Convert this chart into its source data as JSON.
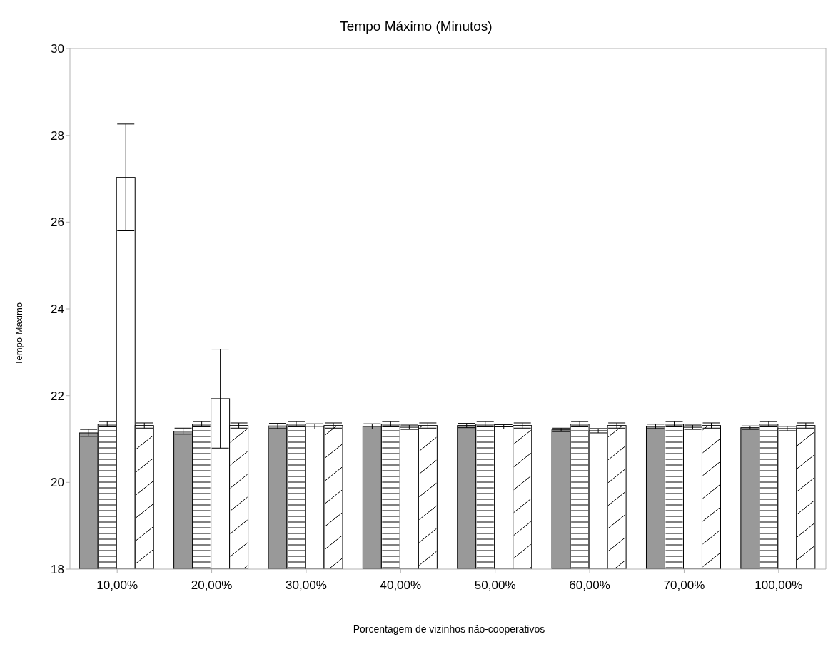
{
  "chart_data": {
    "type": "bar",
    "title": "Tempo Máximo (Minutos)",
    "xlabel": "Porcentagem de vizinhos não-cooperativos",
    "ylabel": "Tempo Máximo",
    "categories": [
      "10,00%",
      "20,00%",
      "30,00%",
      "40,00%",
      "50,00%",
      "60,00%",
      "70,00%",
      "100,00%"
    ],
    "series": [
      {
        "color": "#999999",
        "values": [
          21.14,
          21.18,
          21.3,
          21.29,
          21.31,
          21.21,
          21.29,
          21.26
        ],
        "errors": [
          0.08,
          0.07,
          0.06,
          0.06,
          0.05,
          0.04,
          0.05,
          0.04
        ]
      },
      {
        "color": "#ffffff",
        "values": [
          21.34,
          21.34,
          21.34,
          21.34,
          21.34,
          21.34,
          21.34,
          21.34
        ],
        "errors": [
          0.06,
          0.06,
          0.06,
          0.06,
          0.06,
          0.06,
          0.06,
          0.06
        ]
      },
      {
        "color": "#ffffff",
        "values": [
          27.03,
          21.93,
          21.29,
          21.27,
          21.28,
          21.19,
          21.27,
          21.24
        ],
        "errors": [
          1.23,
          1.14,
          0.06,
          0.05,
          0.05,
          0.05,
          0.05,
          0.05
        ]
      },
      {
        "color": "#ffffff",
        "values": [
          21.31,
          21.31,
          21.31,
          21.31,
          21.31,
          21.31,
          21.31,
          21.31
        ],
        "errors": [
          0.06,
          0.06,
          0.06,
          0.06,
          0.06,
          0.06,
          0.06,
          0.06
        ]
      }
    ],
    "ylim": [
      18,
      30
    ],
    "yticks": [
      18,
      20,
      22,
      24,
      26,
      28,
      30
    ],
    "grid": false,
    "legend": false
  }
}
